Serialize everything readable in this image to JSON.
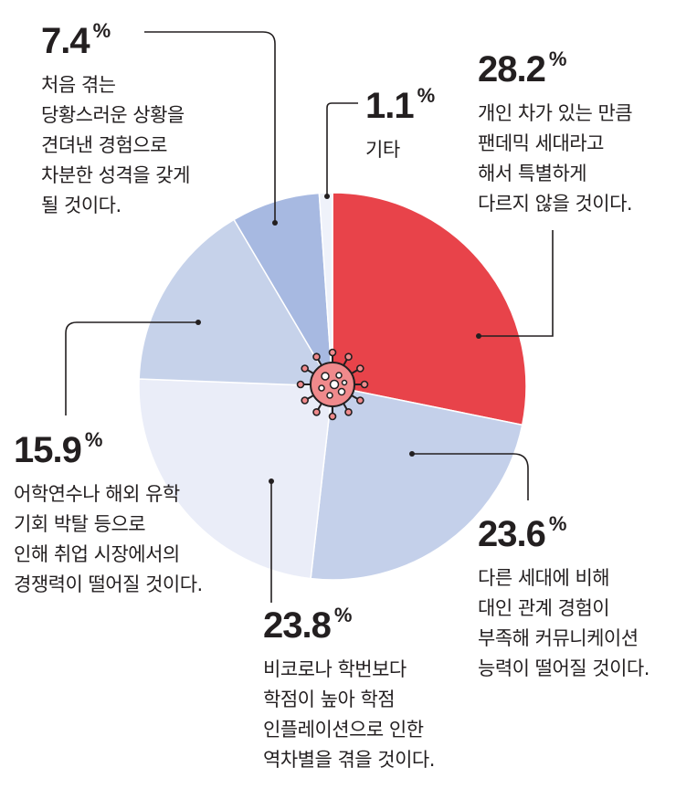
{
  "chart_data": {
    "type": "pie",
    "unit": "%",
    "slices": [
      {
        "value": 28.2,
        "pct": "28.2",
        "color": "#e8434a",
        "lines": [
          "개인 차가 있는 만큼",
          "팬데믹 세대라고",
          "해서 특별하게",
          "다르지 않을 것이다."
        ]
      },
      {
        "value": 23.6,
        "pct": "23.6",
        "color": "#c4d0ea",
        "lines": [
          "다른 세대에 비해",
          "대인 관계 경험이",
          "부족해 커뮤니케이션",
          "능력이 떨어질 것이다."
        ]
      },
      {
        "value": 23.8,
        "pct": "23.8",
        "color": "#eaedf8",
        "lines": [
          "비코로나 학번보다",
          "학점이 높아 학점",
          "인플레이션으로 인한",
          "역차별을 겪을 것이다."
        ]
      },
      {
        "value": 15.9,
        "pct": "15.9",
        "color": "#c6d2ea",
        "lines": [
          "어학연수나 해외 유학",
          "기회 박탈 등으로",
          "인해 취업 시장에서의",
          "경쟁력이 떨어질 것이다."
        ]
      },
      {
        "value": 7.4,
        "pct": "7.4",
        "color": "#a7b9e1",
        "lines": [
          "처음 겪는",
          "당황스러운 상황을",
          "견뎌낸 경험으로",
          "차분한 성격을 갖게",
          "될 것이다."
        ]
      },
      {
        "value": 1.1,
        "pct": "1.1",
        "color": "#eff2fa",
        "lines": [
          "기타"
        ]
      }
    ]
  },
  "center_icon": "coronavirus-icon",
  "accent_color": "#e8434a",
  "leader_color": "#231f20"
}
